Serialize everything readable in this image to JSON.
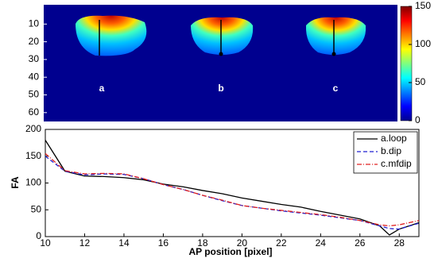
{
  "chart_data": [
    {
      "type": "heatmap",
      "labels": [
        "a",
        "b",
        "c"
      ],
      "ylim": [
        0,
        65
      ],
      "yticks": [
        10,
        20,
        30,
        40,
        50,
        60
      ],
      "clim": [
        0,
        150
      ],
      "cticks": [
        0,
        50,
        100,
        150
      ]
    },
    {
      "type": "line",
      "xlabel": "AP position [pixel]",
      "ylabel": "FA",
      "x": [
        10,
        11,
        12,
        13,
        14,
        15,
        16,
        17,
        18,
        19,
        20,
        21,
        22,
        23,
        24,
        25,
        26,
        27,
        27.5,
        28,
        29
      ],
      "series": [
        {
          "name": "a.loop",
          "color": "#000000",
          "dash": "none",
          "values": [
            180,
            122,
            113,
            112,
            110,
            106,
            98,
            93,
            86,
            80,
            72,
            66,
            60,
            55,
            47,
            40,
            33,
            20,
            3,
            14,
            26
          ]
        },
        {
          "name": "b.dip",
          "color": "#1f1fd0",
          "dash": "5,3",
          "values": [
            150,
            122,
            115,
            117,
            116,
            108,
            97,
            88,
            77,
            67,
            58,
            53,
            48,
            44,
            40,
            35,
            30,
            20,
            15,
            14,
            25
          ]
        },
        {
          "name": "c.mfdip",
          "color": "#e02020",
          "dash": "6,2,1,2",
          "values": [
            155,
            123,
            117,
            118,
            117,
            108,
            97,
            88,
            77,
            68,
            58,
            53,
            49,
            45,
            41,
            36,
            30,
            22,
            20,
            22,
            30
          ]
        }
      ],
      "xlim": [
        10,
        29
      ],
      "xticks": [
        10,
        12,
        14,
        16,
        18,
        20,
        22,
        24,
        26,
        28
      ],
      "ylim": [
        0,
        200
      ],
      "yticks": [
        0,
        50,
        100,
        150,
        200
      ],
      "legend": "upper right"
    }
  ]
}
